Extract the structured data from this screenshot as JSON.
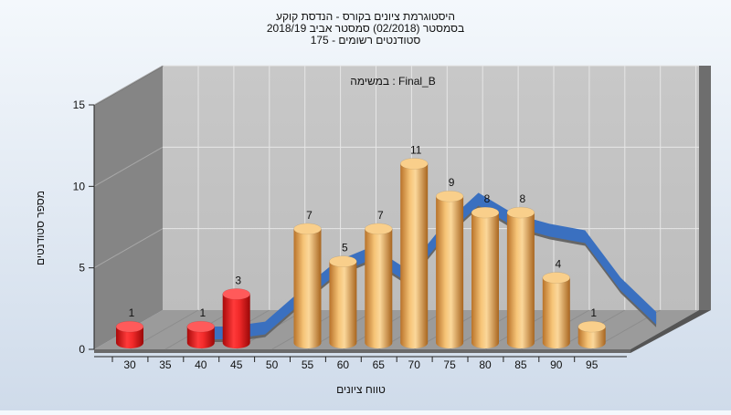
{
  "chart_data": {
    "type": "bar",
    "title_lines": [
      "היסטוגרמת ציונים בקורס - הנדסת קוקע",
      "בסמסטר  (02/2018)  סמסטר אביב 2018/19",
      "סטודנטים רשומים - 175"
    ],
    "subtitle": "במשימה : Final_B",
    "xlabel": "טווח ציונים",
    "ylabel": "מספר סטודנטים",
    "ylim": [
      0,
      15
    ],
    "yticks": [
      0,
      5,
      10,
      15
    ],
    "xticks": [
      30,
      35,
      40,
      45,
      50,
      55,
      60,
      65,
      70,
      75,
      80,
      85,
      90,
      95
    ],
    "bars": [
      {
        "x": 32.5,
        "value": 1,
        "color": "red"
      },
      {
        "x": 42.5,
        "value": 1,
        "color": "red"
      },
      {
        "x": 47.5,
        "value": 3,
        "color": "red"
      },
      {
        "x": 57.5,
        "value": 7,
        "color": "orange"
      },
      {
        "x": 62.5,
        "value": 5,
        "color": "orange"
      },
      {
        "x": 67.5,
        "value": 7,
        "color": "orange"
      },
      {
        "x": 72.5,
        "value": 11,
        "color": "orange"
      },
      {
        "x": 77.5,
        "value": 9,
        "color": "orange"
      },
      {
        "x": 82.5,
        "value": 8,
        "color": "orange"
      },
      {
        "x": 87.5,
        "value": 8,
        "color": "orange"
      },
      {
        "x": 92.5,
        "value": 4,
        "color": "orange"
      },
      {
        "x": 97.5,
        "value": 1,
        "color": "orange"
      }
    ],
    "curve": {
      "x": [
        37.5,
        42.5,
        47.5,
        52.5,
        57.5,
        62.5,
        67.5,
        72.5,
        77.5,
        82.5,
        87.5,
        92.5,
        97.5,
        102.5
      ],
      "y": [
        0,
        0,
        0.3,
        2.2,
        4.0,
        4.9,
        3.5,
        6.2,
        8.2,
        6.9,
        6.3,
        5.9,
        3.0,
        0.9
      ]
    },
    "colors": {
      "red": "#e01010",
      "orange": "#e8a040",
      "curve": "#3a70c0",
      "curve_shadow": "#666666"
    },
    "grid": true
  }
}
